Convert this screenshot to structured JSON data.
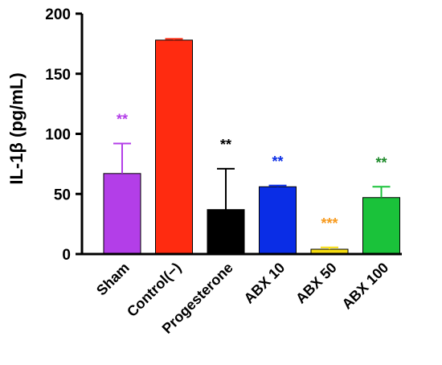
{
  "chart_data": {
    "type": "bar",
    "title": "",
    "xlabel": "",
    "ylabel": "IL-1β (pg/mL)",
    "ylim": [
      0,
      200
    ],
    "yticks": [
      0,
      50,
      100,
      150,
      200
    ],
    "grid": false,
    "categories": [
      "Sham",
      "Control(−)",
      "Progesterone",
      "ABX 10",
      "ABX 50",
      "ABX 100"
    ],
    "values": [
      67,
      178,
      37,
      56,
      4,
      47
    ],
    "errors": [
      25,
      1,
      34,
      1,
      1.5,
      9
    ],
    "colors": [
      "#b33ee8",
      "#ff2b10",
      "#000000",
      "#0a2de6",
      "#f7dd10",
      "#1ac23a"
    ],
    "significance": [
      "**",
      "",
      "**",
      "**",
      "***",
      "**"
    ],
    "significance_colors": [
      "#b33ee8",
      "",
      "#000000",
      "#0a2de6",
      "#f79a1e",
      "#1d8a2a"
    ]
  }
}
